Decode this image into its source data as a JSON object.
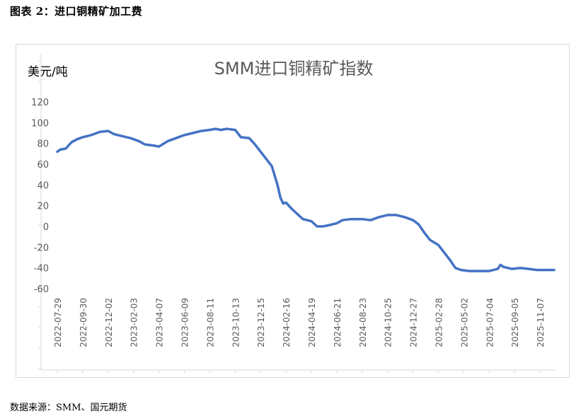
{
  "figure_title": "图表 2：进口铜精矿加工费",
  "source_note": "数据来源：SMM、国元期货",
  "chart_data": {
    "type": "line",
    "title": "SMM进口铜精矿指数",
    "unit_label": "美元/吨",
    "ylim": [
      -60,
      120
    ],
    "yticks": [
      -60,
      -40,
      -20,
      0,
      20,
      40,
      60,
      80,
      100,
      120
    ],
    "grid": false,
    "legend": "none",
    "line_color": "#4472c4",
    "x_tick_labels": [
      "2022-07-29",
      "2022-09-30",
      "2022-12-02",
      "2023-02-03",
      "2023-04-07",
      "2023-06-09",
      "2023-08-11",
      "2023-10-13",
      "2023-12-15",
      "2024-02-16",
      "2024-04-19",
      "2024-06-21",
      "2024-08-23",
      "2024-10-25",
      "2024-12-27",
      "2025-02-28",
      "2025-05-02",
      "2025-07-04",
      "2025-09-05",
      "2025-11-07"
    ],
    "x_range": [
      "2022-07-29",
      "2025-12-12"
    ],
    "series": [
      {
        "points": [
          [
            "2022-07-29",
            72
          ],
          [
            "2022-08-05",
            74
          ],
          [
            "2022-08-19",
            75
          ],
          [
            "2022-09-02",
            81
          ],
          [
            "2022-09-16",
            84
          ],
          [
            "2022-09-30",
            86
          ],
          [
            "2022-10-21",
            88
          ],
          [
            "2022-11-11",
            91
          ],
          [
            "2022-12-02",
            92
          ],
          [
            "2022-12-16",
            89
          ],
          [
            "2023-01-06",
            87
          ],
          [
            "2023-01-27",
            85
          ],
          [
            "2023-02-17",
            82
          ],
          [
            "2023-03-03",
            79
          ],
          [
            "2023-03-24",
            78
          ],
          [
            "2023-04-07",
            77
          ],
          [
            "2023-04-28",
            82
          ],
          [
            "2023-05-19",
            85
          ],
          [
            "2023-06-09",
            88
          ],
          [
            "2023-06-30",
            90
          ],
          [
            "2023-07-21",
            92
          ],
          [
            "2023-08-11",
            93
          ],
          [
            "2023-08-25",
            94
          ],
          [
            "2023-09-08",
            93
          ],
          [
            "2023-09-22",
            94
          ],
          [
            "2023-10-13",
            93
          ],
          [
            "2023-10-27",
            86
          ],
          [
            "2023-11-17",
            85
          ],
          [
            "2023-12-01",
            79
          ],
          [
            "2023-12-15",
            72
          ],
          [
            "2023-12-29",
            65
          ],
          [
            "2024-01-12",
            58
          ],
          [
            "2024-01-26",
            40
          ],
          [
            "2024-02-02",
            28
          ],
          [
            "2024-02-09",
            22
          ],
          [
            "2024-02-16",
            23
          ],
          [
            "2024-03-01",
            17
          ],
          [
            "2024-03-15",
            12
          ],
          [
            "2024-03-29",
            7
          ],
          [
            "2024-04-19",
            5
          ],
          [
            "2024-05-03",
            0
          ],
          [
            "2024-05-17",
            0
          ],
          [
            "2024-05-31",
            1
          ],
          [
            "2024-06-21",
            3
          ],
          [
            "2024-07-05",
            6
          ],
          [
            "2024-07-26",
            7
          ],
          [
            "2024-08-23",
            7
          ],
          [
            "2024-09-13",
            6
          ],
          [
            "2024-10-04",
            9
          ],
          [
            "2024-10-25",
            11
          ],
          [
            "2024-11-15",
            11
          ],
          [
            "2024-12-06",
            9
          ],
          [
            "2024-12-27",
            6
          ],
          [
            "2025-01-10",
            2
          ],
          [
            "2025-01-24",
            -6
          ],
          [
            "2025-02-07",
            -13
          ],
          [
            "2025-02-28",
            -18
          ],
          [
            "2025-03-14",
            -25
          ],
          [
            "2025-03-28",
            -32
          ],
          [
            "2025-04-11",
            -40
          ],
          [
            "2025-04-25",
            -42
          ],
          [
            "2025-05-16",
            -43
          ],
          [
            "2025-05-30",
            -43
          ],
          [
            "2025-06-20",
            -43
          ],
          [
            "2025-07-04",
            -43
          ],
          [
            "2025-07-25",
            -41
          ],
          [
            "2025-08-01",
            -37
          ],
          [
            "2025-08-08",
            -39
          ],
          [
            "2025-08-29",
            -41
          ],
          [
            "2025-09-19",
            -40
          ],
          [
            "2025-10-10",
            -41
          ],
          [
            "2025-10-31",
            -42
          ],
          [
            "2025-11-14",
            -42
          ],
          [
            "2025-12-12",
            -42
          ]
        ]
      }
    ]
  }
}
